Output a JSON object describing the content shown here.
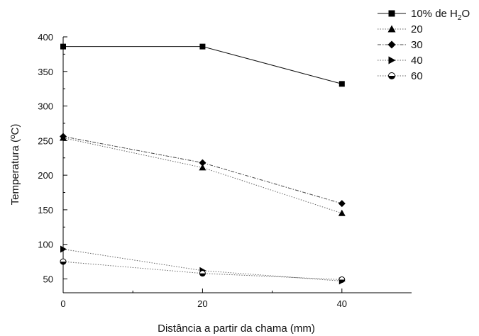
{
  "chart_data": {
    "type": "line",
    "xlabel": "Distância a partir da chama (mm)",
    "ylabel": "Temperatura (ºC)",
    "xlim": [
      0,
      50
    ],
    "ylim": [
      30,
      400
    ],
    "xticks": [
      0,
      20,
      40
    ],
    "yticks": [
      50,
      100,
      150,
      200,
      250,
      300,
      350,
      400
    ],
    "x": [
      0,
      20,
      40
    ],
    "grid": false,
    "legend_position": "top-right",
    "series": [
      {
        "name": "10% de H2O",
        "legend_main": "10% de H",
        "legend_sub": "2",
        "legend_tail": "O",
        "marker": "square",
        "line": "solid",
        "values": [
          386,
          386,
          332
        ]
      },
      {
        "name": "20",
        "marker": "triangle-up",
        "line": "dotted",
        "values": [
          254,
          211,
          145
        ]
      },
      {
        "name": "30",
        "marker": "diamond",
        "line": "dashdot",
        "values": [
          256,
          218,
          159
        ]
      },
      {
        "name": "40",
        "marker": "triangle-right",
        "line": "dotted",
        "values": [
          93,
          62,
          47
        ]
      },
      {
        "name": "60",
        "marker": "half-circle",
        "line": "dotted",
        "values": [
          75,
          58,
          49
        ]
      }
    ]
  }
}
